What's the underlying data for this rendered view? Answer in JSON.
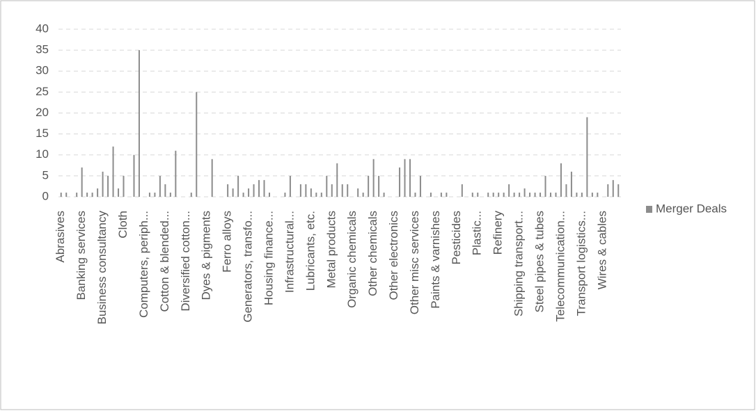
{
  "chart_data": {
    "type": "bar",
    "categories": [
      "Abrasives",
      null,
      null,
      null,
      "Banking services",
      null,
      null,
      null,
      "Business consultancy",
      null,
      null,
      null,
      "Cloth",
      null,
      null,
      null,
      "Computers, periph...",
      null,
      null,
      null,
      "Cotton & blended...",
      null,
      null,
      null,
      "Diversified cotton...",
      null,
      null,
      null,
      "Dyes & pigments",
      null,
      null,
      null,
      "Ferro alloys",
      null,
      null,
      null,
      "Generators, transfo...",
      null,
      null,
      null,
      "Housing finance...",
      null,
      null,
      null,
      "Infrastructural...",
      null,
      null,
      null,
      "Lubricants, etc.",
      null,
      null,
      null,
      "Metal products",
      null,
      null,
      null,
      "Organic chemicals",
      null,
      null,
      null,
      "Other chemicals",
      null,
      null,
      null,
      "Other electronics",
      null,
      null,
      null,
      "Other misc services",
      null,
      null,
      null,
      "Paints & varnishes",
      null,
      null,
      null,
      "Pesticides",
      null,
      null,
      null,
      "Plastic...",
      null,
      null,
      null,
      "Refinery",
      null,
      null,
      null,
      "Shipping transport...",
      null,
      null,
      null,
      "Steel pipes & tubes",
      null,
      null,
      null,
      "Telecommunication...",
      null,
      null,
      null,
      "Transport logistics...",
      null,
      null,
      null,
      "Wires & cables",
      null,
      null,
      null
    ],
    "series": [
      {
        "name": "Merger Deals",
        "color": "#8c8c8c",
        "values": [
          1,
          1,
          0,
          1,
          7,
          1,
          1,
          2,
          6,
          5,
          12,
          2,
          5,
          0,
          10,
          35,
          0,
          1,
          1,
          5,
          3,
          1,
          11,
          0,
          0,
          1,
          25,
          0,
          0,
          9,
          0,
          0,
          3,
          2,
          5,
          1,
          2,
          3,
          4,
          4,
          1,
          0,
          0,
          1,
          5,
          0,
          3,
          3,
          2,
          1,
          1,
          5,
          3,
          8,
          3,
          3,
          0,
          2,
          1,
          5,
          9,
          5,
          1,
          0,
          0,
          7,
          9,
          9,
          1,
          5,
          0,
          1,
          0,
          1,
          1,
          0,
          0,
          3,
          0,
          1,
          1,
          0,
          1,
          1,
          1,
          1,
          3,
          1,
          1,
          2,
          1,
          1,
          1,
          5,
          1,
          1,
          8,
          3,
          6,
          1,
          1,
          19,
          1,
          1,
          0,
          3,
          4,
          3
        ]
      }
    ],
    "ylim": [
      0,
      40
    ],
    "yticks": [
      0,
      5,
      10,
      15,
      20,
      25,
      30,
      35,
      40
    ],
    "grid": true,
    "legend": "right"
  }
}
